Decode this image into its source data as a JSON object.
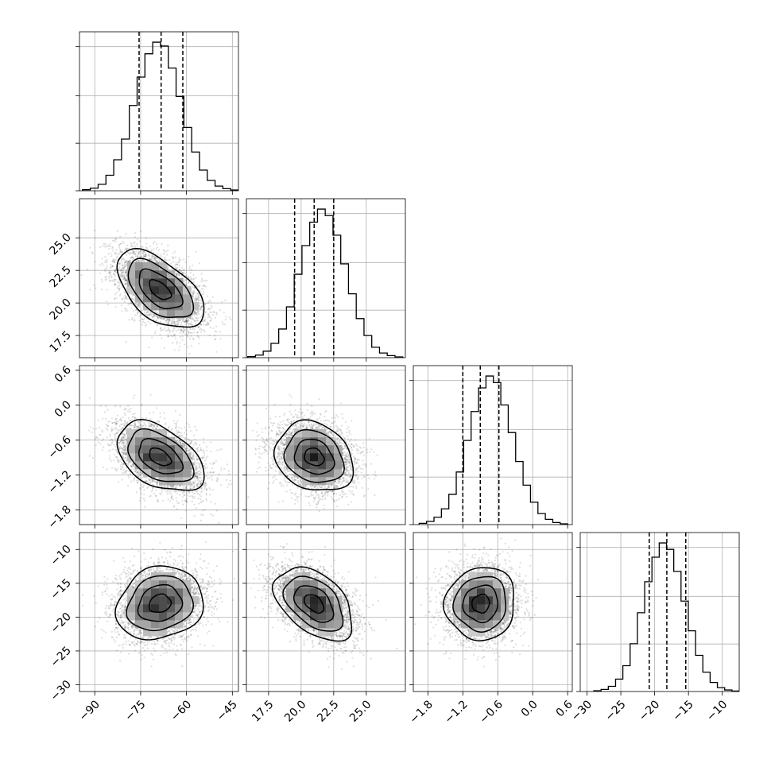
{
  "figure": {
    "type": "corner-plot",
    "grid": true,
    "quantile_lines": "dashed"
  },
  "variables": [
    {
      "index": 0,
      "range": [
        -95,
        -43
      ],
      "ticks": [
        -90,
        -75,
        -60,
        -45
      ],
      "tick_labels": [
        "−90",
        "−75",
        "−60",
        "−45"
      ],
      "mean": -68.7,
      "sd": 7.1,
      "quantiles": [
        -75.5,
        -68.3,
        -61.2
      ]
    },
    {
      "index": 1,
      "range": [
        15.8,
        28.0
      ],
      "ticks": [
        17.5,
        20.0,
        22.5,
        25.0
      ],
      "tick_labels": [
        "17.5",
        "20.0",
        "22.5",
        "25.0"
      ],
      "mean": 21.0,
      "sd": 1.5,
      "quantiles": [
        19.5,
        21.0,
        22.5
      ]
    },
    {
      "index": 2,
      "range": [
        -2.05,
        0.68
      ],
      "ticks": [
        -1.8,
        -1.2,
        -0.6,
        0.0,
        0.6
      ],
      "tick_labels": [
        "−1.8",
        "−1.2",
        "−0.6",
        "0.0",
        "0.6"
      ],
      "mean": -0.89,
      "sd": 0.3,
      "quantiles": [
        -1.2,
        -0.9,
        -0.58
      ]
    },
    {
      "index": 3,
      "range": [
        -31,
        -7.5
      ],
      "ticks": [
        -30,
        -25,
        -20,
        -15,
        -10
      ],
      "tick_labels": [
        "−30",
        "−25",
        "−20",
        "−15",
        "−10"
      ],
      "mean": -18.0,
      "sd": 2.7,
      "quantiles": [
        -20.8,
        -18.2,
        -15.4
      ]
    }
  ],
  "chart_data": {
    "type": "histogram+contour",
    "histograms": [
      {
        "variable": 0,
        "bin_edges_range": [
          -94,
          -43
        ],
        "bins": 20,
        "counts": [
          4,
          10,
          25,
          60,
          120,
          200,
          330,
          440,
          530,
          575,
          560,
          475,
          365,
          245,
          150,
          80,
          40,
          18,
          8,
          3
        ]
      },
      {
        "variable": 1,
        "bin_edges_range": [
          15.9,
          27.8
        ],
        "bins": 20,
        "counts": [
          4,
          10,
          25,
          55,
          110,
          195,
          320,
          430,
          520,
          570,
          545,
          470,
          360,
          245,
          150,
          85,
          40,
          18,
          8,
          3
        ]
      },
      {
        "variable": 2,
        "bin_edges_range": [
          -1.95,
          0.6
        ],
        "bins": 20,
        "counts": [
          5,
          12,
          28,
          60,
          115,
          200,
          320,
          430,
          520,
          565,
          540,
          455,
          350,
          240,
          150,
          85,
          42,
          20,
          8,
          3
        ]
      },
      {
        "variable": 3,
        "bin_edges_range": [
          -29,
          -7.5
        ],
        "bins": 20,
        "counts": [
          3,
          8,
          20,
          48,
          100,
          185,
          305,
          425,
          520,
          575,
          550,
          465,
          350,
          235,
          140,
          75,
          35,
          15,
          6,
          2
        ]
      }
    ],
    "correlations": [
      {
        "x": 0,
        "y": 1,
        "rho": -0.55
      },
      {
        "x": 0,
        "y": 2,
        "rho": -0.45
      },
      {
        "x": 1,
        "y": 2,
        "rho": -0.2
      },
      {
        "x": 0,
        "y": 3,
        "rho": 0.15
      },
      {
        "x": 1,
        "y": 3,
        "rho": -0.45
      },
      {
        "x": 2,
        "y": 3,
        "rho": 0.05
      }
    ],
    "contour_levels": [
      0.5,
      1.0,
      1.5,
      2.0
    ],
    "samples_per_panel": 4000
  }
}
